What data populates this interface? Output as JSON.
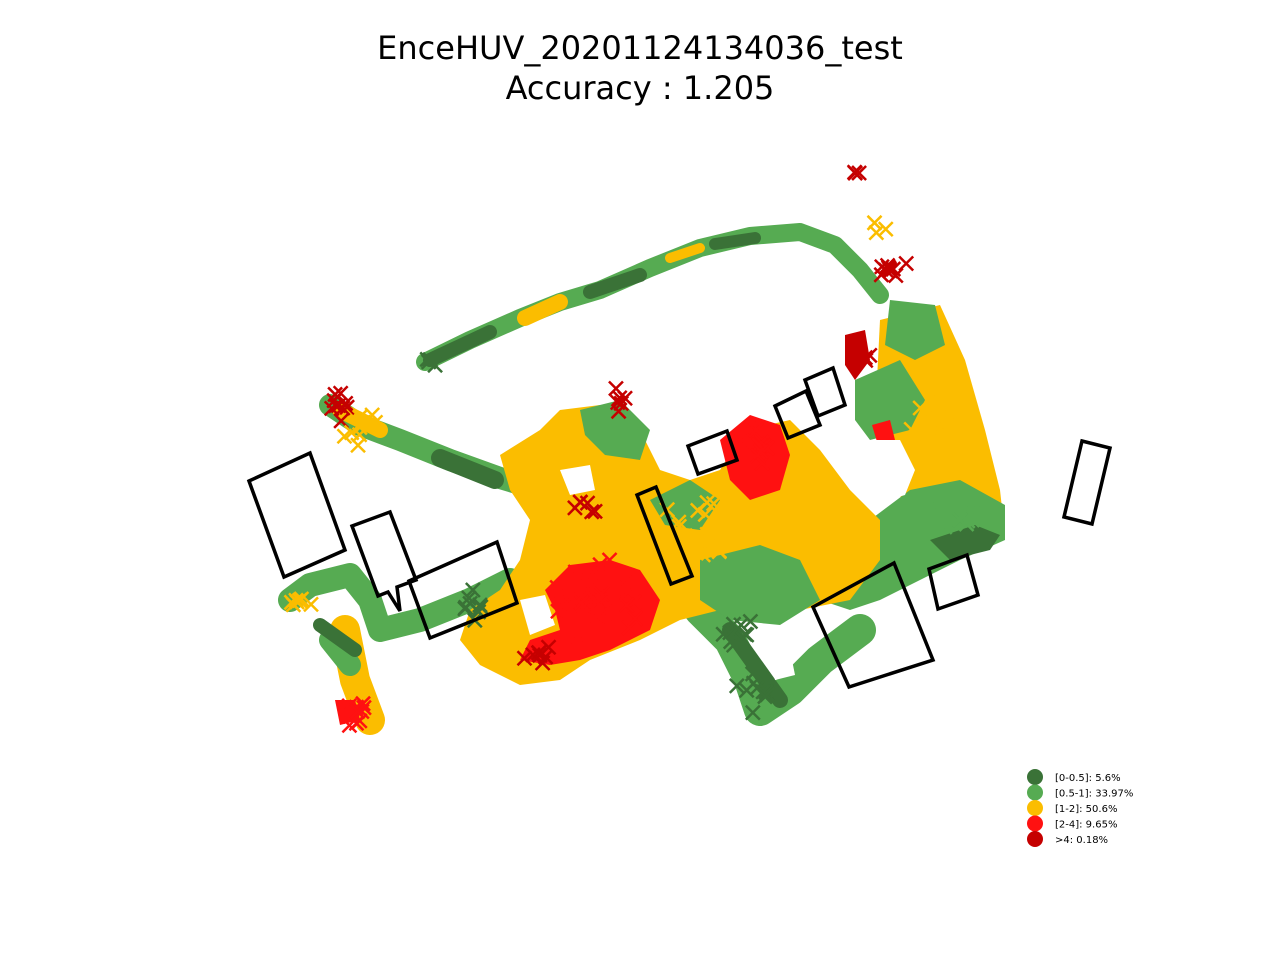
{
  "chart_data": {
    "type": "scatter",
    "title": "EnceHUV_20201124134036_test",
    "subtitle": "Accuracy : 1.205",
    "axes_visible": false,
    "legend_position": "lower-right",
    "categories": [
      {
        "label": "[0-0.5]: 5.6%",
        "range": "[0-0.5]",
        "percent": 5.6,
        "color": "#3a7237"
      },
      {
        "label": "[0.5-1]: 33.97%",
        "range": "[0.5-1]",
        "percent": 33.97,
        "color": "#56ab52"
      },
      {
        "label": "[1-2]: 50.6%",
        "range": "[1-2]",
        "percent": 50.6,
        "color": "#fbbd00"
      },
      {
        "label": "[2-4]: 9.65%",
        "range": "[2-4]",
        "percent": 9.65,
        "color": "#ff1111"
      },
      {
        "label": ">4: 0.18%",
        "range": ">4",
        "percent": 0.18,
        "color": "#c50000"
      }
    ]
  }
}
